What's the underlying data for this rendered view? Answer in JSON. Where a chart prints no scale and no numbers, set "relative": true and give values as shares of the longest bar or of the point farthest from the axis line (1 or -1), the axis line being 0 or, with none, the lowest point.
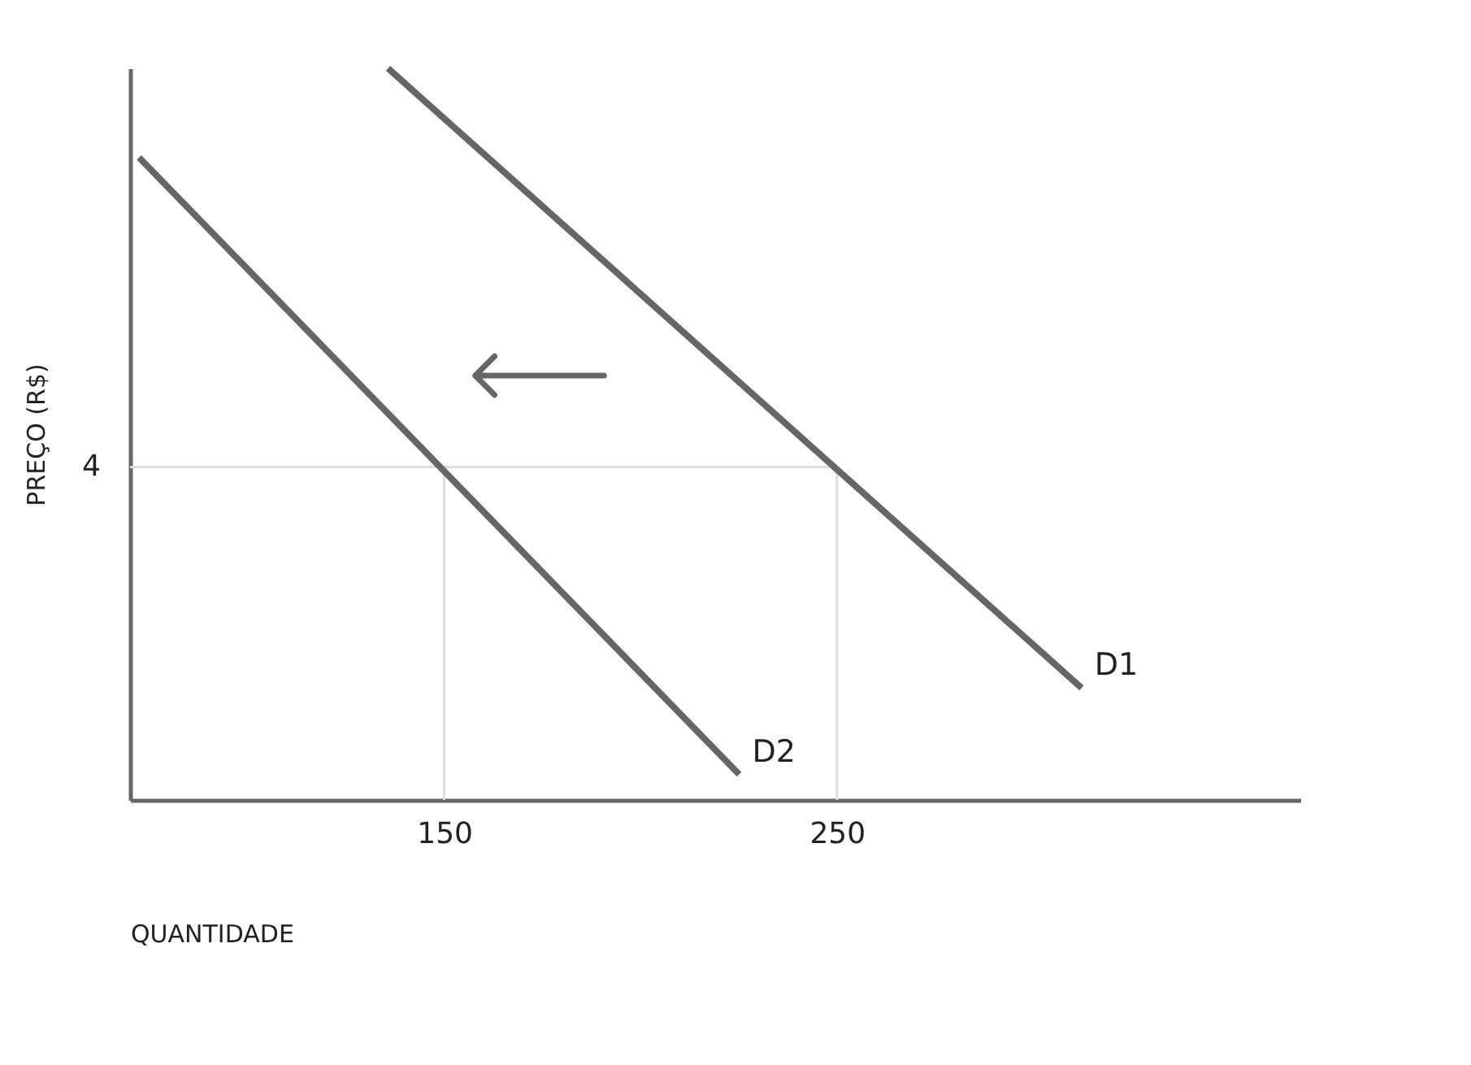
{
  "chart_data": {
    "type": "line",
    "xlabel": "QUANTIDADE",
    "ylabel": "PREÇO (R$)",
    "relative": true,
    "annotations": [
      "4"
    ],
    "xlim": [
      70,
      368
    ],
    "xticks": [
      150,
      250
    ],
    "grid": false,
    "marker": "none",
    "line_style": "solid",
    "series": [
      {
        "name": "D1",
        "color": "#666666",
        "x": [
          135.7,
          312.3
        ],
        "values": [
          1,
          0.153
        ]
      },
      {
        "name": "D2",
        "color": "#666666",
        "x": [
          72.3,
          225.1
        ],
        "values": [
          0.878,
          0.035
        ]
      }
    ],
    "ref_lines": [
      {
        "axis": "y",
        "value": 0.455,
        "color": "#dddddd"
      },
      {
        "axis": "x",
        "value": 150,
        "color": "#dddddd"
      },
      {
        "axis": "x",
        "value": 250,
        "color": "#dddddd"
      }
    ]
  }
}
